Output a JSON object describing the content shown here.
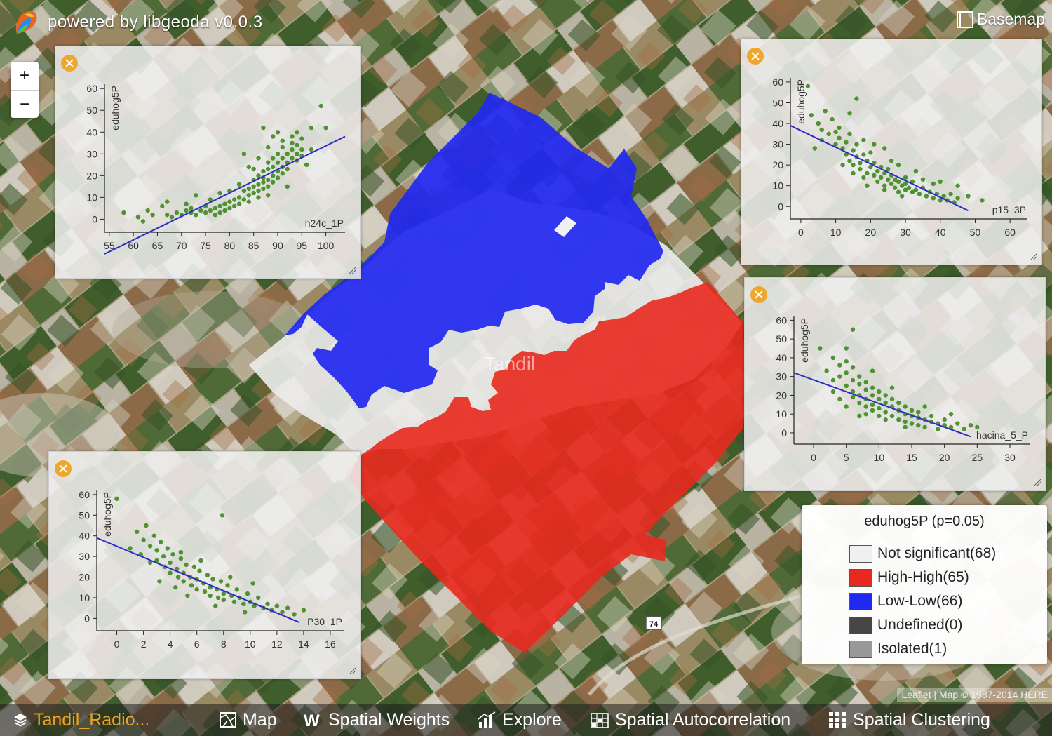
{
  "app": {
    "brand_text": "powered by libgeoda v0.0.3"
  },
  "controls": {
    "basemap_label": "Basemap",
    "zoom_in": "+",
    "zoom_out": "−"
  },
  "map": {
    "labels": {
      "city": "Tandil",
      "road": "74"
    },
    "colors": {
      "not_significant": "#f0f0f0",
      "high_high": "#e8291e",
      "low_low": "#2128f0",
      "undefined": "#464646",
      "isolated": "#999999"
    }
  },
  "legend": {
    "title": "eduhog5P (p=0.05)",
    "items": [
      {
        "label": "Not significant(68)",
        "color": "#f0f0f0"
      },
      {
        "label": "High-High(65)",
        "color": "#e8291e"
      },
      {
        "label": "Low-Low(66)",
        "color": "#2128f0"
      },
      {
        "label": "Undefined(0)",
        "color": "#464646"
      },
      {
        "label": "Isolated(1)",
        "color": "#999999"
      }
    ]
  },
  "attribution": "Leaflet | Map © 1987-2014 HERE",
  "menubar": {
    "dataset": "Tandil_Radio...",
    "map": "Map",
    "spatial_weights": "Spatial Weights",
    "explore": "Explore",
    "spatial_autocorrelation": "Spatial Autocorrelation",
    "spatial_clustering": "Spatial Clustering"
  },
  "icons": {
    "dataset": "layers-icon",
    "map": "map-icon",
    "weights": "w-icon",
    "explore": "bar-chart-icon",
    "autocorrelation": "grid-chart-icon",
    "clustering": "dots-grid-icon",
    "close": "close-icon",
    "basemap": "basemap-icon"
  },
  "chart_data": [
    {
      "type": "scatter",
      "xlabel": "h24c_1P",
      "ylabel": "eduhog5P",
      "xticks": [
        55,
        60,
        65,
        70,
        75,
        80,
        85,
        90,
        95,
        100
      ],
      "yticks": [
        0,
        10,
        20,
        30,
        40,
        50,
        60
      ],
      "xlim": [
        54,
        104
      ],
      "ylim": [
        -6,
        62
      ],
      "point_color": "#3f8a1f",
      "line_color": "#2c2ccc",
      "fit_line": [
        [
          54,
          -16
        ],
        [
          104,
          38
        ]
      ],
      "points": [
        [
          58,
          3
        ],
        [
          61,
          1
        ],
        [
          63,
          4
        ],
        [
          64,
          2
        ],
        [
          66,
          6
        ],
        [
          67,
          2
        ],
        [
          68,
          1
        ],
        [
          69,
          3
        ],
        [
          70,
          2
        ],
        [
          71,
          4
        ],
        [
          72,
          3
        ],
        [
          72,
          5
        ],
        [
          73,
          2
        ],
        [
          74,
          4
        ],
        [
          75,
          3
        ],
        [
          75,
          6
        ],
        [
          76,
          4
        ],
        [
          77,
          5
        ],
        [
          77,
          2
        ],
        [
          78,
          6
        ],
        [
          78,
          3
        ],
        [
          79,
          7
        ],
        [
          79,
          4
        ],
        [
          80,
          8
        ],
        [
          80,
          5
        ],
        [
          81,
          9
        ],
        [
          81,
          6
        ],
        [
          82,
          10
        ],
        [
          82,
          7
        ],
        [
          83,
          13
        ],
        [
          83,
          9
        ],
        [
          84,
          14
        ],
        [
          84,
          11
        ],
        [
          84,
          8
        ],
        [
          85,
          15
        ],
        [
          85,
          12
        ],
        [
          85,
          18
        ],
        [
          86,
          16
        ],
        [
          86,
          13
        ],
        [
          86,
          20
        ],
        [
          86,
          10
        ],
        [
          87,
          17
        ],
        [
          87,
          22
        ],
        [
          87,
          14
        ],
        [
          87,
          19
        ],
        [
          88,
          18
        ],
        [
          88,
          23
        ],
        [
          88,
          15
        ],
        [
          88,
          26
        ],
        [
          89,
          20
        ],
        [
          89,
          24
        ],
        [
          89,
          17
        ],
        [
          89,
          28
        ],
        [
          90,
          22
        ],
        [
          90,
          26
        ],
        [
          90,
          19
        ],
        [
          90,
          30
        ],
        [
          91,
          24
        ],
        [
          91,
          28
        ],
        [
          91,
          21
        ],
        [
          91,
          33
        ],
        [
          92,
          26
        ],
        [
          92,
          30
        ],
        [
          92,
          23
        ],
        [
          93,
          28
        ],
        [
          93,
          32
        ],
        [
          93,
          35
        ],
        [
          94,
          30
        ],
        [
          94,
          27
        ],
        [
          94,
          34
        ],
        [
          95,
          32
        ],
        [
          95,
          29
        ],
        [
          95,
          37
        ],
        [
          89,
          38
        ],
        [
          87,
          42
        ],
        [
          91,
          36
        ],
        [
          97,
          42
        ],
        [
          99,
          52
        ],
        [
          100,
          42
        ],
        [
          96,
          25
        ],
        [
          73,
          11
        ],
        [
          84,
          24
        ],
        [
          86,
          28
        ],
        [
          88,
          33
        ],
        [
          93,
          38
        ],
        [
          90,
          40
        ],
        [
          85,
          23
        ],
        [
          80,
          13
        ],
        [
          76,
          9
        ],
        [
          83,
          30
        ],
        [
          78,
          12
        ],
        [
          71,
          7
        ],
        [
          67,
          8
        ],
        [
          62,
          -1
        ],
        [
          82,
          16
        ],
        [
          92,
          15
        ],
        [
          97,
          32
        ],
        [
          94,
          40
        ],
        [
          88,
          11
        ]
      ]
    },
    {
      "type": "scatter",
      "xlabel": "p15_3P",
      "ylabel": "eduhog5P",
      "xticks": [
        0,
        10,
        20,
        30,
        40,
        50,
        60
      ],
      "yticks": [
        0,
        10,
        20,
        30,
        40,
        50,
        60
      ],
      "xlim": [
        -3,
        65
      ],
      "ylim": [
        -6,
        62
      ],
      "point_color": "#3f8a1f",
      "line_color": "#2c2ccc",
      "fit_line": [
        [
          -3,
          39
        ],
        [
          48,
          -2
        ]
      ],
      "points": [
        [
          2,
          58
        ],
        [
          3,
          44
        ],
        [
          5,
          40
        ],
        [
          6,
          37
        ],
        [
          7,
          46
        ],
        [
          8,
          35
        ],
        [
          9,
          42
        ],
        [
          10,
          30
        ],
        [
          11,
          38
        ],
        [
          11,
          33
        ],
        [
          12,
          28
        ],
        [
          13,
          31
        ],
        [
          13,
          25
        ],
        [
          14,
          35
        ],
        [
          14,
          22
        ],
        [
          15,
          27
        ],
        [
          15,
          20
        ],
        [
          16,
          24
        ],
        [
          16,
          30
        ],
        [
          17,
          21
        ],
        [
          17,
          18
        ],
        [
          18,
          25
        ],
        [
          18,
          14
        ],
        [
          19,
          22
        ],
        [
          19,
          16
        ],
        [
          20,
          19
        ],
        [
          20,
          26
        ],
        [
          21,
          15
        ],
        [
          21,
          21
        ],
        [
          22,
          17
        ],
        [
          22,
          12
        ],
        [
          23,
          19
        ],
        [
          23,
          14
        ],
        [
          24,
          16
        ],
        [
          24,
          10
        ],
        [
          25,
          13
        ],
        [
          25,
          18
        ],
        [
          26,
          11
        ],
        [
          26,
          15
        ],
        [
          27,
          13
        ],
        [
          27,
          9
        ],
        [
          28,
          12
        ],
        [
          28,
          7
        ],
        [
          29,
          10
        ],
        [
          30,
          11
        ],
        [
          30,
          8
        ],
        [
          31,
          9
        ],
        [
          32,
          7
        ],
        [
          32,
          12
        ],
        [
          33,
          8
        ],
        [
          34,
          6
        ],
        [
          35,
          9
        ],
        [
          36,
          5
        ],
        [
          37,
          7
        ],
        [
          38,
          4
        ],
        [
          39,
          6
        ],
        [
          40,
          3
        ],
        [
          41,
          5
        ],
        [
          42,
          3
        ],
        [
          43,
          6
        ],
        [
          44,
          2
        ],
        [
          45,
          4
        ],
        [
          48,
          5
        ],
        [
          52,
          3
        ],
        [
          14,
          45
        ],
        [
          16,
          52
        ],
        [
          24,
          28
        ],
        [
          28,
          20
        ],
        [
          33,
          17
        ],
        [
          40,
          12
        ],
        [
          45,
          10
        ],
        [
          12,
          20
        ],
        [
          18,
          32
        ],
        [
          21,
          30
        ],
        [
          26,
          22
        ],
        [
          30,
          14
        ],
        [
          35,
          13
        ],
        [
          38,
          11
        ],
        [
          10,
          36
        ],
        [
          6,
          32
        ],
        [
          4,
          28
        ],
        [
          15,
          16
        ],
        [
          19,
          10
        ],
        [
          24,
          8
        ],
        [
          29,
          5
        ]
      ]
    },
    {
      "type": "scatter",
      "xlabel": "hacina_5_P",
      "ylabel": "eduhog5P",
      "xticks": [
        0,
        5,
        10,
        15,
        20,
        25,
        30
      ],
      "yticks": [
        0,
        10,
        20,
        30,
        40,
        50,
        60
      ],
      "xlim": [
        -3,
        33
      ],
      "ylim": [
        -6,
        62
      ],
      "point_color": "#3f8a1f",
      "line_color": "#2c2ccc",
      "fit_line": [
        [
          -3,
          32
        ],
        [
          24,
          -2
        ]
      ],
      "points": [
        [
          1,
          45
        ],
        [
          2,
          33
        ],
        [
          3,
          40
        ],
        [
          3,
          28
        ],
        [
          4,
          36
        ],
        [
          4,
          30
        ],
        [
          5,
          32
        ],
        [
          5,
          25
        ],
        [
          5,
          38
        ],
        [
          5,
          45
        ],
        [
          6,
          28
        ],
        [
          6,
          22
        ],
        [
          6,
          35
        ],
        [
          6,
          19
        ],
        [
          7,
          26
        ],
        [
          7,
          20
        ],
        [
          7,
          30
        ],
        [
          7,
          16
        ],
        [
          8,
          23
        ],
        [
          8,
          18
        ],
        [
          8,
          27
        ],
        [
          8,
          14
        ],
        [
          9,
          20
        ],
        [
          9,
          15
        ],
        [
          9,
          24
        ],
        [
          9,
          12
        ],
        [
          10,
          18
        ],
        [
          10,
          13
        ],
        [
          10,
          22
        ],
        [
          10,
          9
        ],
        [
          11,
          16
        ],
        [
          11,
          11
        ],
        [
          11,
          20
        ],
        [
          12,
          14
        ],
        [
          12,
          9
        ],
        [
          12,
          18
        ],
        [
          13,
          12
        ],
        [
          13,
          7
        ],
        [
          13,
          16
        ],
        [
          14,
          10
        ],
        [
          14,
          6
        ],
        [
          14,
          14
        ],
        [
          15,
          9
        ],
        [
          15,
          5
        ],
        [
          15,
          12
        ],
        [
          16,
          8
        ],
        [
          16,
          4
        ],
        [
          16,
          11
        ],
        [
          17,
          7
        ],
        [
          17,
          3
        ],
        [
          18,
          6
        ],
        [
          18,
          9
        ],
        [
          19,
          5
        ],
        [
          19,
          2
        ],
        [
          20,
          4
        ],
        [
          20,
          7
        ],
        [
          21,
          3
        ],
        [
          22,
          5
        ],
        [
          23,
          2
        ],
        [
          24,
          4
        ],
        [
          25,
          3
        ],
        [
          6,
          55
        ],
        [
          9,
          33
        ],
        [
          12,
          24
        ],
        [
          17,
          14
        ],
        [
          21,
          10
        ],
        [
          3,
          22
        ],
        [
          4,
          18
        ],
        [
          8,
          10
        ],
        [
          11,
          7
        ],
        [
          14,
          3
        ],
        [
          5,
          14
        ],
        [
          7,
          9
        ]
      ]
    },
    {
      "type": "scatter",
      "xlabel": "P30_1P",
      "ylabel": "eduhog5P",
      "xticks": [
        0,
        2,
        4,
        6,
        8,
        10,
        12,
        14,
        16
      ],
      "yticks": [
        0,
        10,
        20,
        30,
        40,
        50,
        60
      ],
      "xlim": [
        -1.5,
        17
      ],
      "ylim": [
        -6,
        62
      ],
      "point_color": "#3f8a1f",
      "line_color": "#2c2ccc",
      "fit_line": [
        [
          -1.5,
          39
        ],
        [
          13.7,
          -2
        ]
      ],
      "points": [
        [
          0,
          58
        ],
        [
          1.5,
          42
        ],
        [
          2,
          38
        ],
        [
          2.2,
          45
        ],
        [
          2.5,
          35
        ],
        [
          2.8,
          40
        ],
        [
          3,
          33
        ],
        [
          3,
          28
        ],
        [
          3.3,
          37
        ],
        [
          3.5,
          30
        ],
        [
          3.6,
          25
        ],
        [
          3.8,
          34
        ],
        [
          4,
          27
        ],
        [
          4,
          22
        ],
        [
          4.2,
          31
        ],
        [
          4.5,
          24
        ],
        [
          4.6,
          20
        ],
        [
          4.8,
          29
        ],
        [
          5,
          22
        ],
        [
          5,
          18
        ],
        [
          5.2,
          26
        ],
        [
          5.5,
          20
        ],
        [
          5.6,
          16
        ],
        [
          5.8,
          25
        ],
        [
          6,
          19
        ],
        [
          6,
          14
        ],
        [
          6.2,
          23
        ],
        [
          6.5,
          17
        ],
        [
          6.6,
          13
        ],
        [
          6.8,
          21
        ],
        [
          7,
          15
        ],
        [
          7,
          11
        ],
        [
          7.2,
          19
        ],
        [
          7.5,
          14
        ],
        [
          7.6,
          10
        ],
        [
          7.8,
          18
        ],
        [
          8,
          12
        ],
        [
          8,
          9
        ],
        [
          8.3,
          16
        ],
        [
          8.6,
          11
        ],
        [
          8.8,
          8
        ],
        [
          9,
          14
        ],
        [
          9.2,
          10
        ],
        [
          9.5,
          7
        ],
        [
          9.8,
          12
        ],
        [
          10,
          8
        ],
        [
          10.3,
          6
        ],
        [
          10.6,
          10
        ],
        [
          11,
          5
        ],
        [
          11.3,
          7
        ],
        [
          11.6,
          4
        ],
        [
          12,
          6
        ],
        [
          12.4,
          3
        ],
        [
          12.8,
          5
        ],
        [
          13.3,
          2
        ],
        [
          14,
          4
        ],
        [
          7.9,
          50
        ],
        [
          1,
          34
        ],
        [
          2.5,
          27
        ],
        [
          4.8,
          32
        ],
        [
          6.3,
          28
        ],
        [
          8.5,
          20
        ],
        [
          10.2,
          17
        ],
        [
          3.2,
          18
        ],
        [
          5.3,
          11
        ],
        [
          7.4,
          6
        ],
        [
          9.6,
          3
        ],
        [
          1.8,
          31
        ],
        [
          4.4,
          15
        ]
      ]
    }
  ]
}
